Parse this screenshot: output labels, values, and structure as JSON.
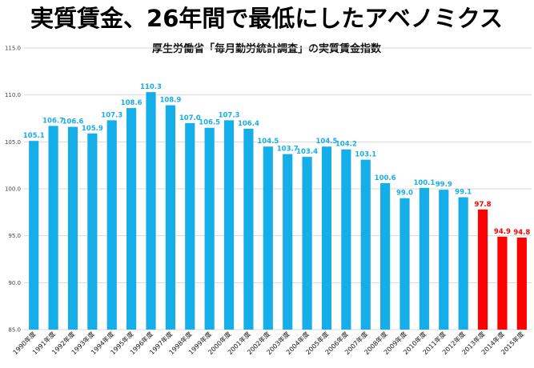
{
  "headline": "実質賃金、26年間で最低にしたアベノミクス",
  "colors": {
    "headline": "#ff1a1a",
    "bar_normal": "#16aee8",
    "bar_highlight": "#ff0000",
    "label_normal": "#16aee8",
    "label_highlight": "#ff0000",
    "grid": "#d9d9d9"
  },
  "chart_data": {
    "type": "bar",
    "title": "厚生労働省「毎月勤労統計調査」の実質賃金指数",
    "xlabel": "",
    "ylabel": "",
    "ylim": [
      85,
      115
    ],
    "yticks": [
      85.0,
      90.0,
      95.0,
      100.0,
      105.0,
      110.0,
      115.0
    ],
    "ytick_labels": [
      "85.0",
      "90.0",
      "95.0",
      "100.0",
      "105.0",
      "110.0",
      "115.0"
    ],
    "grid": true,
    "categories": [
      "1990年度",
      "1991年度",
      "1992年度",
      "1993年度",
      "1994年度",
      "1995年度",
      "1996年度",
      "1997年度",
      "1998年度",
      "1999年度",
      "2000年度",
      "2001年度",
      "2002年度",
      "2003年度",
      "2004年度",
      "2005年度",
      "2006年度",
      "2007年度",
      "2008年度",
      "2009年度",
      "2010年度",
      "2011年度",
      "2012年度",
      "2013年度",
      "2014年度",
      "2015年度"
    ],
    "values": [
      105.1,
      106.7,
      106.6,
      105.9,
      107.3,
      108.6,
      110.3,
      108.9,
      107.0,
      106.5,
      107.3,
      106.4,
      104.5,
      103.7,
      103.4,
      104.5,
      104.2,
      103.1,
      100.6,
      99.0,
      100.1,
      99.9,
      99.1,
      97.8,
      94.9,
      94.8
    ],
    "value_labels": [
      "105.1",
      "106.7",
      "106.6",
      "105.9",
      "107.3",
      "108.6",
      "110.3",
      "108.9",
      "107.0",
      "106.5",
      "107.3",
      "106.4",
      "104.5",
      "103.7",
      "103.4",
      "104.5",
      "104.2",
      "103.1",
      "100.6",
      "99.0",
      "100.1",
      "99.9",
      "99.1",
      "97.8",
      "94.9",
      "94.8"
    ],
    "highlight_categories": [
      "2013年度",
      "2014年度",
      "2015年度"
    ]
  }
}
